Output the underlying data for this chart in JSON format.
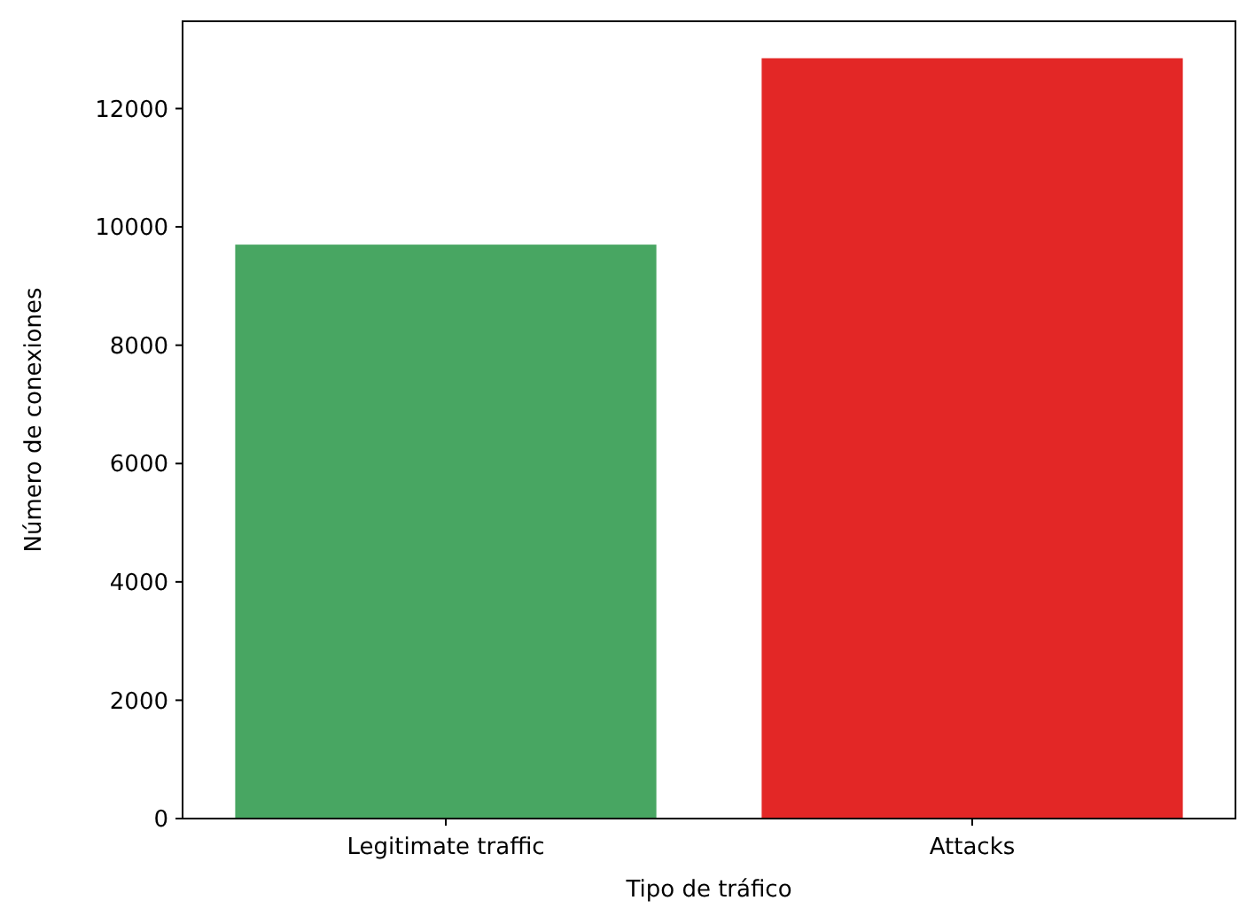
{
  "chart_data": {
    "type": "bar",
    "xlabel": "Tipo de tráfico",
    "ylabel": "Número de conexiones",
    "categories": [
      "Legitimate traffic",
      "Attacks"
    ],
    "values": [
      9700,
      12850
    ],
    "colors": [
      "#48a662",
      "#e32726"
    ],
    "ylim": [
      0,
      13475
    ],
    "yticks": [
      0,
      2000,
      4000,
      6000,
      8000,
      10000,
      12000
    ],
    "grid": false
  }
}
